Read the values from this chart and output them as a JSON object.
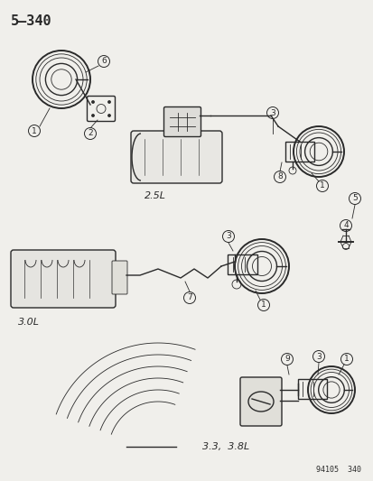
{
  "title": "5–340",
  "footer": "94105  340",
  "bg_color": "#f0efeb",
  "text_color": "#1a1a1a",
  "line_color": "#2a2a2a",
  "label_2_5L": "2.5L",
  "label_3_0L": "3.0L",
  "label_3_3_3_8L": "3.3,  3.8L",
  "lw_main": 1.0,
  "lw_thin": 0.6,
  "lw_thick": 1.4,
  "circle_label_r": 6.5,
  "circle_label_fs": 6.5
}
